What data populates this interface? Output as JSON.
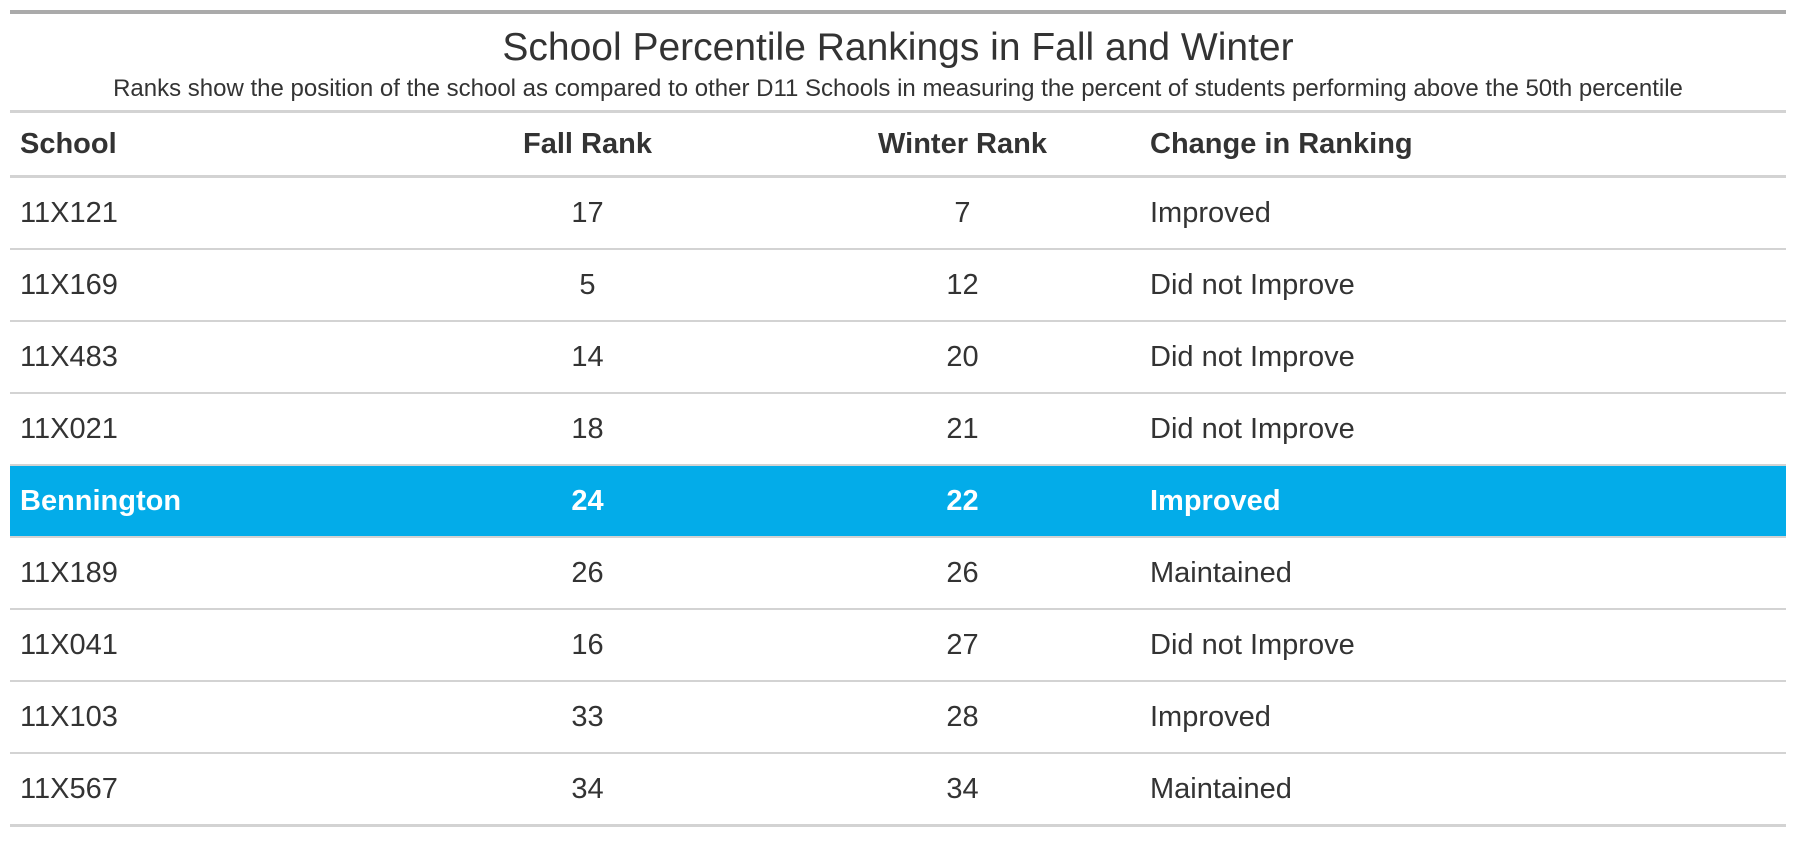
{
  "title": "School Percentile Rankings in Fall and Winter",
  "subtitle": "Ranks show the position of the school as compared to other D11 Schools in measuring the percent of students performing above the 50th percentile",
  "columns": [
    "School",
    "Fall Rank",
    "Winter Rank",
    "Change in Ranking"
  ],
  "highlight_color": "#03ace9",
  "rows": [
    {
      "school": "11X121",
      "fall": "17",
      "winter": "7",
      "change": "Improved",
      "highlight": false
    },
    {
      "school": "11X169",
      "fall": "5",
      "winter": "12",
      "change": "Did not Improve",
      "highlight": false
    },
    {
      "school": "11X483",
      "fall": "14",
      "winter": "20",
      "change": "Did not Improve",
      "highlight": false
    },
    {
      "school": "11X021",
      "fall": "18",
      "winter": "21",
      "change": "Did not Improve",
      "highlight": false
    },
    {
      "school": "Bennington",
      "fall": "24",
      "winter": "22",
      "change": "Improved",
      "highlight": true
    },
    {
      "school": "11X189",
      "fall": "26",
      "winter": "26",
      "change": "Maintained",
      "highlight": false
    },
    {
      "school": "11X041",
      "fall": "16",
      "winter": "27",
      "change": "Did not Improve",
      "highlight": false
    },
    {
      "school": "11X103",
      "fall": "33",
      "winter": "28",
      "change": "Improved",
      "highlight": false
    },
    {
      "school": "11X567",
      "fall": "34",
      "winter": "34",
      "change": "Maintained",
      "highlight": false
    }
  ]
}
